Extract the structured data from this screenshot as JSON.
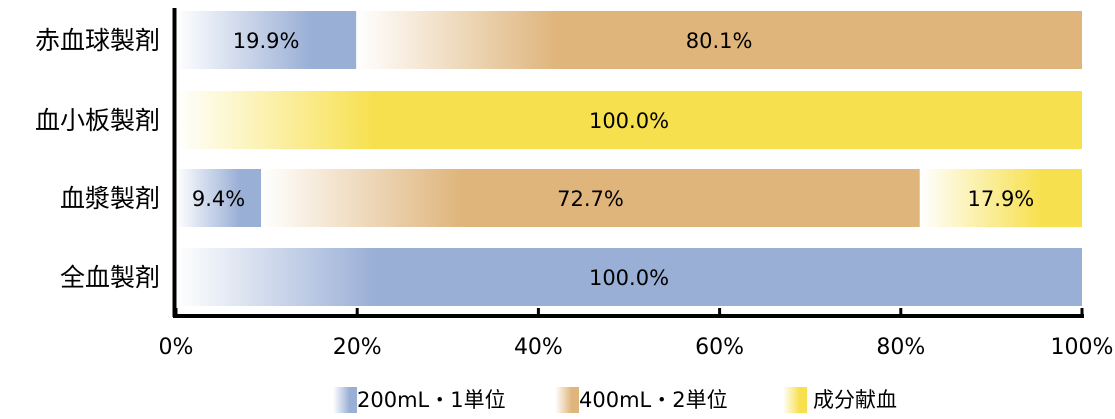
{
  "chart_data": {
    "type": "bar",
    "orientation": "horizontal",
    "stacked": true,
    "categories": [
      "赤血球製剤",
      "血小板製剤",
      "血漿製剤",
      "全血製剤"
    ],
    "series": [
      {
        "name": "200mL・1単位",
        "color": "#9aafd6",
        "values": [
          19.9,
          0,
          9.4,
          100.0
        ],
        "labels": [
          "19.9%",
          "",
          "9.4%",
          "100.0%"
        ]
      },
      {
        "name": "400mL・2単位",
        "color": "#dfb57c",
        "values": [
          80.1,
          0,
          72.7,
          0
        ],
        "labels": [
          "80.1%",
          "",
          "72.7%",
          ""
        ]
      },
      {
        "name": "成分献血",
        "color": "#f7e04e",
        "values": [
          0,
          100.0,
          17.9,
          0
        ],
        "labels": [
          "",
          "100.0%",
          "17.9%",
          ""
        ]
      }
    ],
    "x_ticks": [
      "0%",
      "20%",
      "40%",
      "60%",
      "80%",
      "100%"
    ],
    "xlim": [
      0,
      100
    ],
    "legend_position": "bottom",
    "grid": false
  }
}
